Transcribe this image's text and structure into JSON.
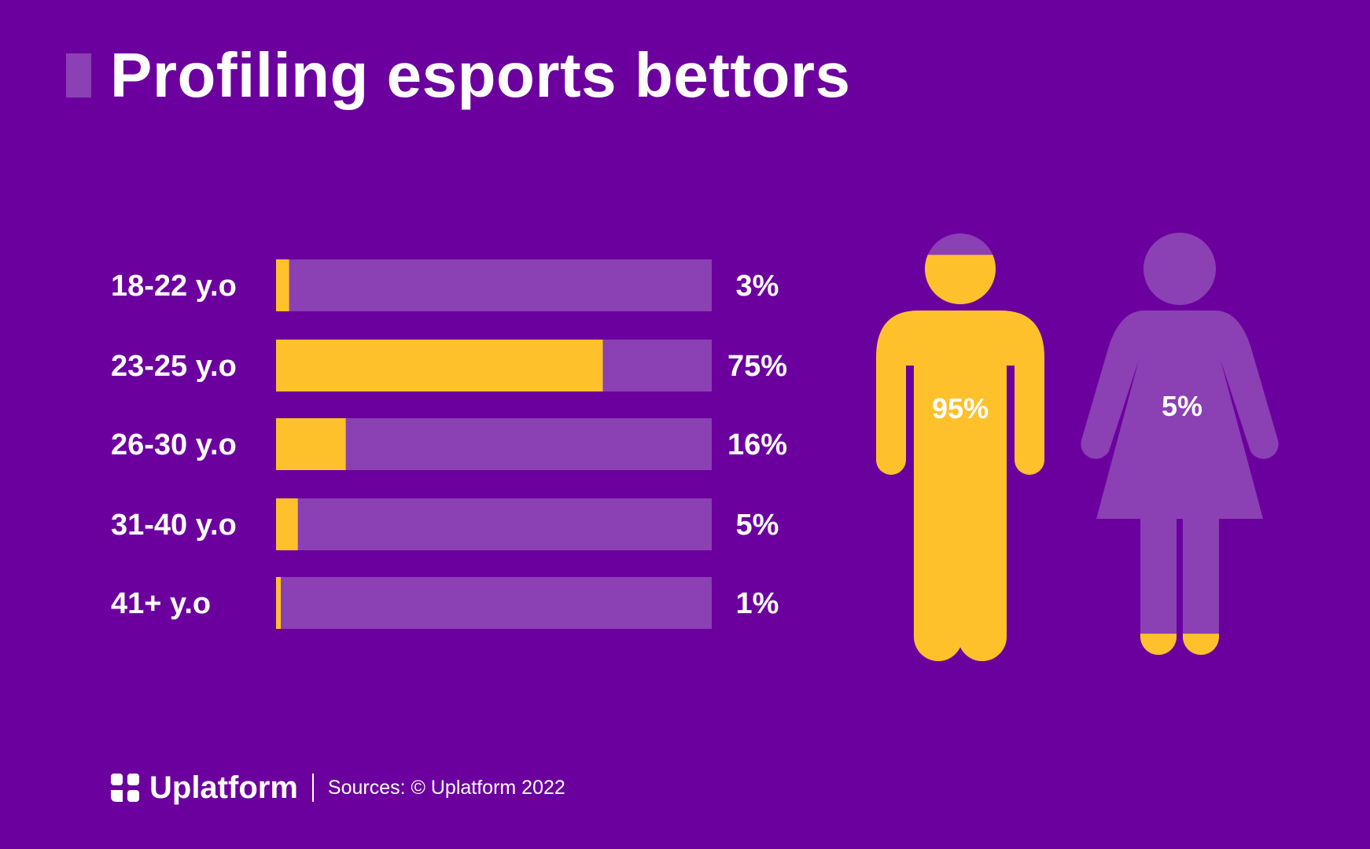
{
  "chart_data": [
    {
      "type": "bar",
      "orientation": "horizontal",
      "title": "Profiling esports bettors",
      "categories": [
        "18-22 y.o",
        "23-25 y.o",
        "26-30 y.o",
        "31-40 y.o",
        "41+ y.o"
      ],
      "values": [
        3,
        75,
        16,
        5,
        1
      ],
      "value_labels": [
        "3%",
        "75%",
        "16%",
        "5%",
        "1%"
      ],
      "unit": "%",
      "xlim": [
        0,
        100
      ],
      "grid": false,
      "colors": {
        "fill": "#fec12c",
        "track": "#8b40b4"
      }
    },
    {
      "type": "pictogram",
      "categories": [
        "male",
        "female"
      ],
      "values": [
        95,
        5
      ],
      "value_labels": [
        "95%",
        "5%"
      ],
      "unit": "%",
      "colors": {
        "fill": "#fec12c",
        "base": "#8b40b4"
      }
    }
  ],
  "header": {
    "title": "Profiling esports bettors"
  },
  "footer": {
    "brand": "Uplatform",
    "source": "Sources: © Uplatform 2022"
  },
  "icons": [
    "uplatform-logo-icon",
    "male-figure-icon",
    "female-figure-icon"
  ],
  "colors": {
    "background": "#6c009e",
    "accent": "#8b40b4",
    "highlight": "#fec12c",
    "text": "#ffffff"
  }
}
